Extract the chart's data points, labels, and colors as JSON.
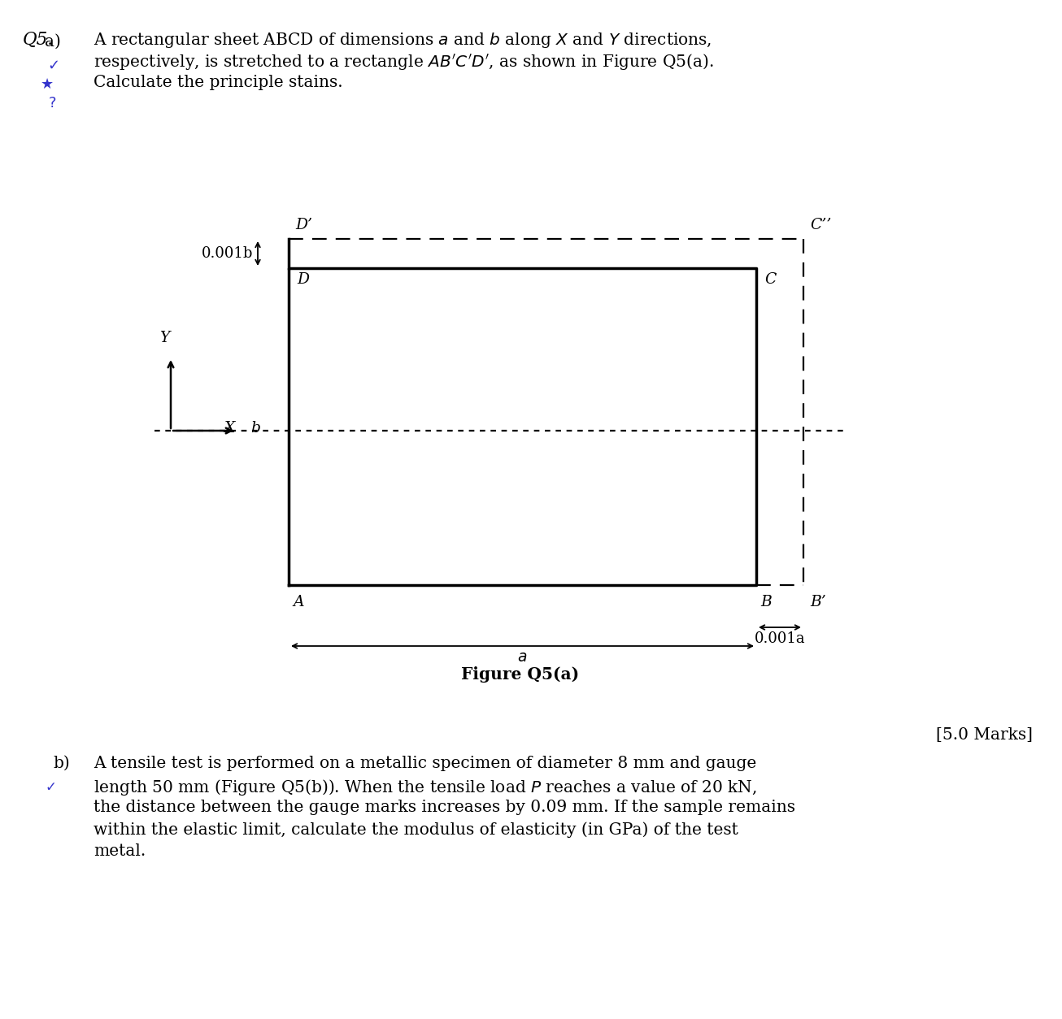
{
  "background_color": "#ffffff",
  "label_Dprime": "D’",
  "label_Cprime": "C’’",
  "label_D": "D",
  "label_C": "C",
  "label_A": "A",
  "label_B": "B",
  "label_Bprime": "B’",
  "label_Y": "Y",
  "label_X": "X",
  "label_b": "b",
  "label_a": "a",
  "label_0001b": "0.001b",
  "label_0001a": "0.001a",
  "fig_caption": "Figure Q5(a)",
  "annotation_marks": "[5.0 Marks]"
}
